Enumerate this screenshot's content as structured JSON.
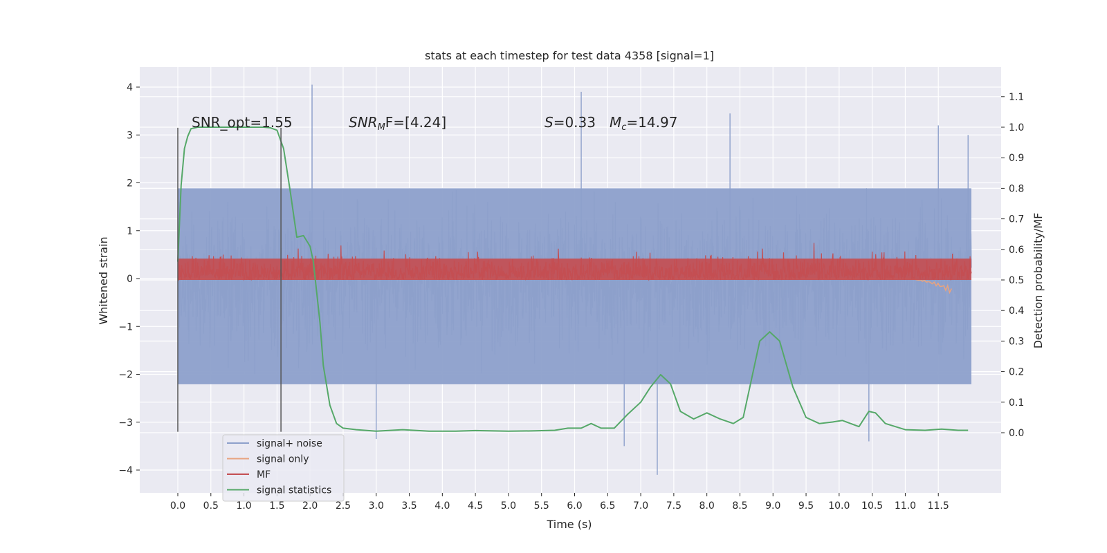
{
  "chart_data": {
    "type": "line",
    "title": "stats at each timestep for test data 4358 [signal=1]",
    "xlabel": "Time (s)",
    "ylabel_left": "Whitened strain",
    "ylabel_right": "Detection probability/MF",
    "xlim": [
      -0.53,
      12.65
    ],
    "ylim_left": [
      -4.5,
      4.45
    ],
    "ylim_right": [
      -0.2,
      1.2
    ],
    "xticks": [
      0.0,
      0.5,
      1.0,
      1.5,
      2.0,
      2.5,
      3.0,
      3.5,
      4.0,
      4.5,
      5.0,
      5.5,
      6.0,
      6.5,
      7.0,
      7.5,
      8.0,
      8.5,
      9.0,
      9.5,
      10.0,
      10.5,
      11.0,
      11.5
    ],
    "xtick_labels": [
      "0.0",
      "0.5",
      "1.0",
      "1.5",
      "2.0",
      "2.5",
      "3.0",
      "3.5",
      "4.0",
      "4.5",
      "5.0",
      "5.5",
      "6.0",
      "6.5",
      "7.0",
      "7.5",
      "8.0",
      "8.5",
      "9.0",
      "9.5",
      "10.0",
      "10.5",
      "11.0",
      "11.5"
    ],
    "yticks_left": [
      -4,
      -3,
      -2,
      -1,
      0,
      1,
      2,
      3,
      4
    ],
    "ytick_labels_left": [
      "−4",
      "−3",
      "−2",
      "−1",
      "0",
      "1",
      "2",
      "3",
      "4"
    ],
    "yticks_right": [
      0.0,
      0.1,
      0.2,
      0.3,
      0.4,
      0.5,
      0.6,
      0.7,
      0.8,
      0.9,
      1.0,
      1.1
    ],
    "ytick_labels_right": [
      "0.0",
      "0.1",
      "0.2",
      "0.3",
      "0.4",
      "0.5",
      "0.6",
      "0.7",
      "0.8",
      "0.9",
      "1.0",
      "1.1"
    ],
    "grid": true,
    "legend_position": "lower-left",
    "annotations": {
      "snr_opt": "SNR_opt=1.55",
      "snr_mf_prefix": "SNR",
      "snr_mf_sub": "M",
      "snr_mf_suffix": "F=[4.24]",
      "s_sym": "S",
      "s_val": "=0.33",
      "mc_sym": "M",
      "mc_sub": "c",
      "mc_val": "=14.97"
    },
    "vertical_markers": [
      0.0,
      1.56
    ],
    "series": [
      {
        "name": "signal+ noise",
        "axis": "left",
        "color": "#8da0cb",
        "t_range": [
          0.0,
          12.0
        ],
        "envelope_upper": 2.3,
        "envelope_lower": -2.3,
        "notable_peaks": [
          [
            0.02,
            1.6
          ],
          [
            2.03,
            4.05
          ],
          [
            6.1,
            3.9
          ],
          [
            7.25,
            -4.1
          ],
          [
            8.35,
            3.45
          ],
          [
            11.5,
            3.2
          ],
          [
            11.95,
            3.0
          ],
          [
            3.0,
            -3.35
          ],
          [
            10.45,
            -3.4
          ],
          [
            6.75,
            -3.5
          ]
        ]
      },
      {
        "name": "signal only",
        "axis": "left",
        "color": "#e8a37f",
        "t_range": [
          0.0,
          11.7
        ],
        "shape": "flat near 0 with a small negative chirp at ~11.6 s",
        "chirp_min": -0.25
      },
      {
        "name": "MF",
        "axis": "right",
        "color": "#c44e52",
        "t_range": [
          0.0,
          12.0
        ],
        "baseline": 0.5,
        "band_upper": 0.58,
        "max": 0.65
      },
      {
        "name": "signal statistics",
        "axis": "right",
        "color": "#55a868",
        "t": [
          0.0,
          0.05,
          0.1,
          0.15,
          0.2,
          0.3,
          0.5,
          0.7,
          1.0,
          1.3,
          1.4,
          1.5,
          1.6,
          1.7,
          1.8,
          1.9,
          2.0,
          2.05,
          2.1,
          2.15,
          2.2,
          2.3,
          2.4,
          2.5,
          2.7,
          3.0,
          3.4,
          3.8,
          4.2,
          4.5,
          5.0,
          5.4,
          5.7,
          5.9,
          6.1,
          6.25,
          6.4,
          6.6,
          6.8,
          7.0,
          7.15,
          7.3,
          7.45,
          7.6,
          7.8,
          8.0,
          8.2,
          8.4,
          8.55,
          8.7,
          8.8,
          8.95,
          9.1,
          9.3,
          9.5,
          9.7,
          9.9,
          10.05,
          10.3,
          10.45,
          10.55,
          10.7,
          11.0,
          11.3,
          11.55,
          11.8,
          11.95
        ],
        "values": [
          0.56,
          0.81,
          0.93,
          0.97,
          0.995,
          1.0,
          1.0,
          1.0,
          1.0,
          1.0,
          0.998,
          0.99,
          0.93,
          0.79,
          0.64,
          0.645,
          0.61,
          0.56,
          0.46,
          0.36,
          0.22,
          0.09,
          0.03,
          0.015,
          0.01,
          0.005,
          0.01,
          0.005,
          0.005,
          0.007,
          0.005,
          0.006,
          0.008,
          0.015,
          0.015,
          0.03,
          0.015,
          0.015,
          0.06,
          0.1,
          0.15,
          0.19,
          0.16,
          0.07,
          0.045,
          0.065,
          0.045,
          0.03,
          0.05,
          0.2,
          0.3,
          0.33,
          0.3,
          0.15,
          0.05,
          0.03,
          0.035,
          0.04,
          0.02,
          0.07,
          0.065,
          0.03,
          0.01,
          0.008,
          0.012,
          0.008,
          0.008
        ]
      }
    ]
  }
}
